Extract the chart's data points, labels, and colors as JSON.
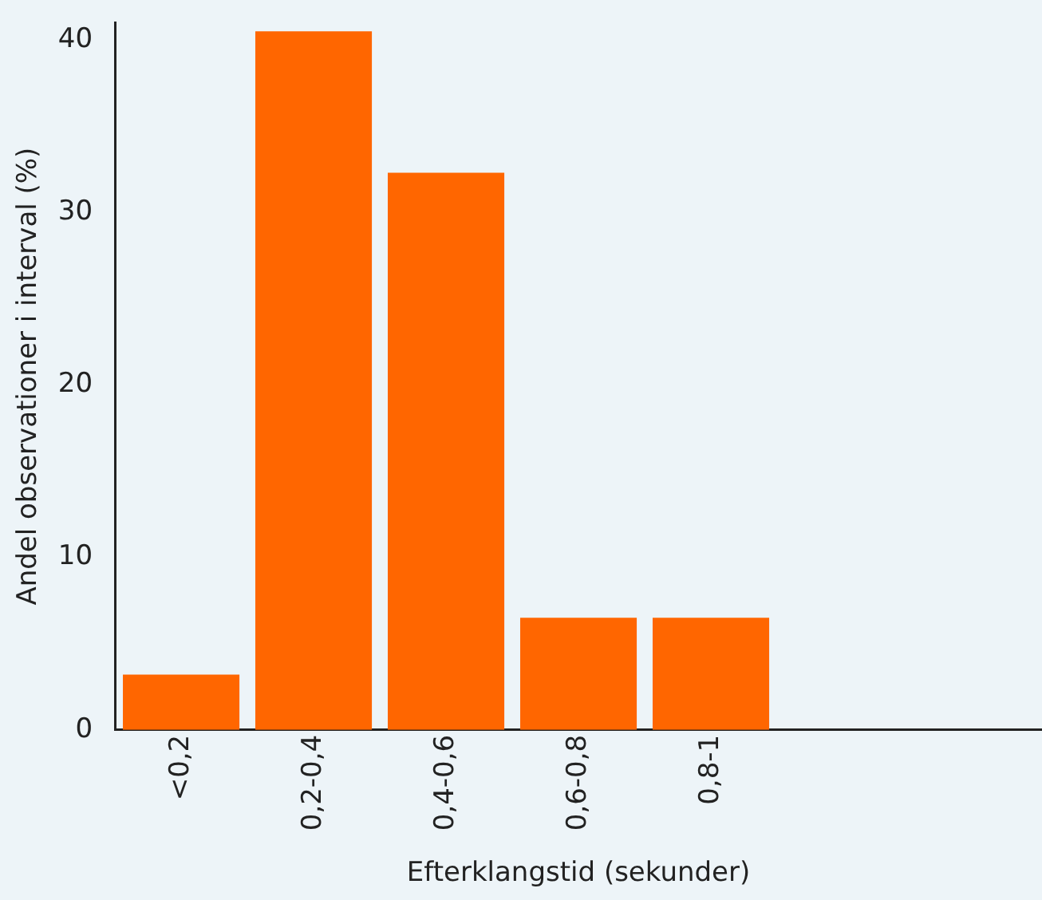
{
  "chart_data": {
    "type": "bar",
    "xlabel": "Efterklangstid (sekunder)",
    "ylabel": "Andel observationer i interval (%)",
    "categories": [
      "<0,2",
      "0,2-0,4",
      "0,4-0,6",
      "0,6-0,8",
      "0,8-1",
      null,
      null
    ],
    "values": [
      3.2,
      40.5,
      32.3,
      6.5,
      6.5,
      null,
      null
    ],
    "color": "#ff6600",
    "ylim": [
      0,
      41
    ],
    "yticks": [
      0,
      10,
      20,
      30,
      40
    ],
    "grid": false,
    "legend": false
  }
}
